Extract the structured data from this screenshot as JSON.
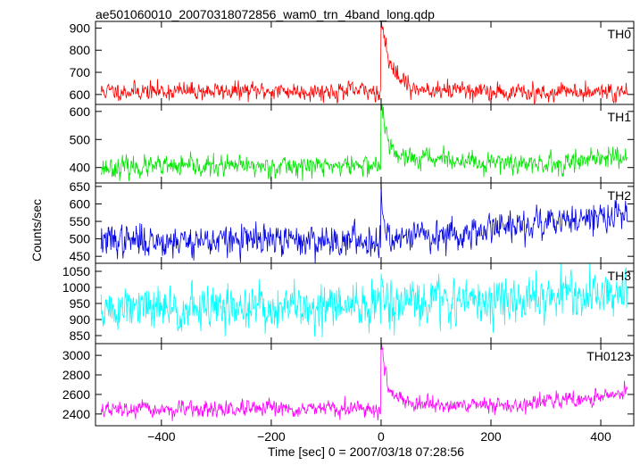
{
  "chart_data": {
    "type": "line",
    "title": "ae501060010_20070318072856_wam0_trn_4band_long.qdp",
    "xlabel": "Time [sec] 0 = 2007/03/18 07:28:56",
    "ylabel": "Counts/sec",
    "xlim": [
      -520,
      460
    ],
    "xticks": [
      -400,
      -200,
      0,
      200,
      400
    ],
    "xtick_labels": [
      "−400",
      "−200",
      "0",
      "200",
      "400"
    ],
    "x_step": 1,
    "panels": [
      {
        "name": "TH0",
        "color": "#ff0000",
        "ylim": [
          555,
          930
        ],
        "yticks": [
          600,
          700,
          800,
          900
        ],
        "x_start": -510,
        "x_end": 448,
        "baseline_pre": 615,
        "baseline_post": 610,
        "noise_sd": 20,
        "trend": [],
        "burst": {
          "peak": 920,
          "decay": 15,
          "tail_amp": 40,
          "tail_decay": 90
        },
        "seed": 11
      },
      {
        "name": "TH1",
        "color": "#00e600",
        "ylim": [
          345,
          625
        ],
        "yticks": [
          400,
          500,
          600
        ],
        "x_start": -510,
        "x_end": 448,
        "baseline_pre": 400,
        "baseline_post": 405,
        "noise_sd": 18,
        "trend": [
          [
            -510,
            0
          ],
          [
            0,
            8
          ],
          [
            300,
            10
          ],
          [
            448,
            35
          ]
        ],
        "burst": {
          "peak": 600,
          "decay": 10,
          "tail_amp": 40,
          "tail_decay": 80
        },
        "seed": 23
      },
      {
        "name": "TH2",
        "color": "#0000e6",
        "ylim": [
          430,
          660
        ],
        "yticks": [
          450,
          500,
          550,
          600,
          650
        ],
        "x_start": -510,
        "x_end": 448,
        "baseline_pre": 495,
        "baseline_post": 510,
        "noise_sd": 22,
        "trend": [
          [
            -510,
            0
          ],
          [
            0,
            0
          ],
          [
            120,
            0
          ],
          [
            200,
            25
          ],
          [
            448,
            60
          ]
        ],
        "burst": {
          "peak": 655,
          "decay": 4,
          "tail_amp": 0,
          "tail_decay": 10
        },
        "seed": 37
      },
      {
        "name": "TH3",
        "color": "#00ffff",
        "ylim": [
          825,
          1075
        ],
        "yticks": [
          850,
          900,
          950,
          1000,
          1050
        ],
        "x_start": -510,
        "x_end": 448,
        "baseline_pre": 930,
        "baseline_post": 940,
        "noise_sd": 35,
        "trend": [
          [
            -510,
            0
          ],
          [
            0,
            10
          ],
          [
            200,
            20
          ],
          [
            448,
            45
          ]
        ],
        "burst": {
          "peak": 1030,
          "decay": 3,
          "tail_amp": 0,
          "tail_decay": 10
        },
        "seed": 51
      },
      {
        "name": "TH0123",
        "color": "#ff00ff",
        "ylim": [
          2280,
          3120
        ],
        "yticks": [
          2400,
          2600,
          2800,
          3000
        ],
        "x_start": -510,
        "x_end": 448,
        "baseline_pre": 2440,
        "baseline_post": 2440,
        "noise_sd": 40,
        "trend": [
          [
            -510,
            0
          ],
          [
            0,
            10
          ],
          [
            250,
            50
          ],
          [
            448,
            170
          ]
        ],
        "burst": {
          "peak": 3100,
          "decay": 8,
          "tail_amp": 120,
          "tail_decay": 70
        },
        "seed": 67
      }
    ]
  }
}
